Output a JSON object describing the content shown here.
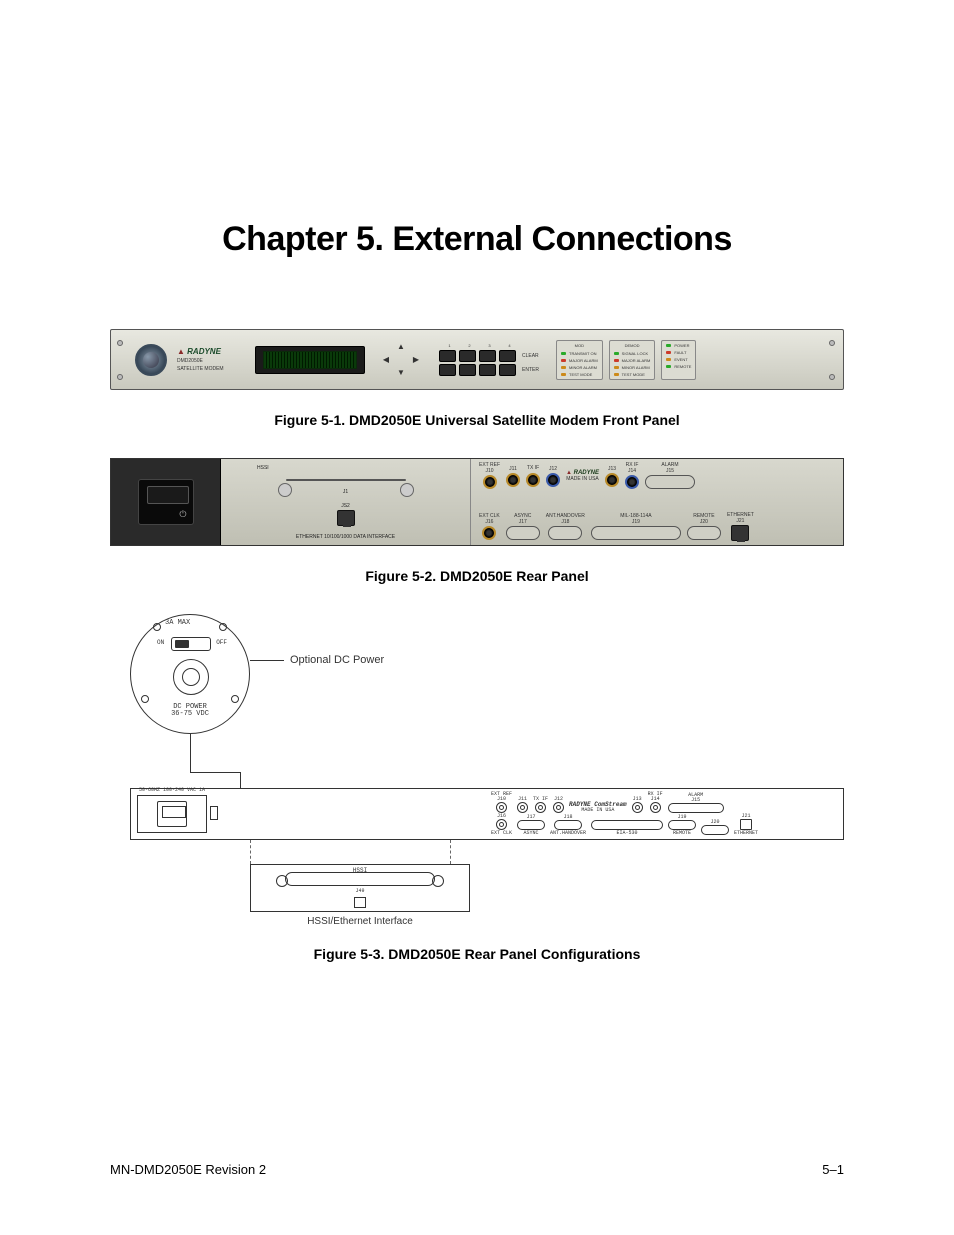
{
  "page": {
    "title": "Chapter 5.  External Connections",
    "footer_left": "MN-DMD2050E   Revision 2",
    "footer_right": "5–1"
  },
  "fig1": {
    "caption": "Figure 5-1. DMD2050E Universal Satellite Modem Front Panel",
    "brand": "RADYNE",
    "model_line1": "DMD2050E",
    "model_line2": "SATELLITE MODEM",
    "keypad_cols": [
      "1",
      "2",
      "3",
      "4"
    ],
    "keypad_side": [
      "CLEAR",
      "ENTER"
    ],
    "led_groups": [
      {
        "title": "MOD",
        "rows": [
          {
            "color": "#2aaa2a",
            "label": "TRANSMIT ON"
          },
          {
            "color": "#cc3a2a",
            "label": "MAJOR ALARM"
          },
          {
            "color": "#cc8a1a",
            "label": "MINOR ALARM"
          },
          {
            "color": "#cc8a1a",
            "label": "TEST MODE"
          }
        ]
      },
      {
        "title": "DEMOD",
        "rows": [
          {
            "color": "#2aaa2a",
            "label": "SIGNAL LOCK"
          },
          {
            "color": "#cc3a2a",
            "label": "MAJOR ALARM"
          },
          {
            "color": "#cc8a1a",
            "label": "MINOR ALARM"
          },
          {
            "color": "#cc8a1a",
            "label": "TEST MODE"
          }
        ]
      },
      {
        "title": "",
        "rows": [
          {
            "color": "#2aaa2a",
            "label": "POWER"
          },
          {
            "color": "#cc3a2a",
            "label": "FAULT"
          },
          {
            "color": "#cc8a1a",
            "label": "EVENT"
          },
          {
            "color": "#2aaa2a",
            "label": "REMOTE"
          }
        ]
      }
    ]
  },
  "fig2": {
    "caption": "Figure 5-2. DMD2050E Rear Panel",
    "hssi_label": "HSSI",
    "j1": "J1",
    "j52": "JS2",
    "eth_label": "ETHERNET 10/100/1000 DATA INTERFACE",
    "brand": "RADYNE",
    "made": "MADE IN USA",
    "top": [
      {
        "t": "EXT REF",
        "j": "J10",
        "type": "bnc"
      },
      {
        "t": "",
        "j": "J11",
        "type": "bnc"
      },
      {
        "t": "TX IF",
        "j": "",
        "type": "bnc"
      },
      {
        "t": "",
        "j": "J12",
        "type": "bnc-blue"
      },
      {
        "t": "",
        "j": "J13",
        "type": "bnc"
      },
      {
        "t": "RX IF",
        "j": "J14",
        "type": "bnc-blue"
      },
      {
        "t": "ALARM",
        "j": "J15",
        "type": "dsub-m"
      }
    ],
    "bottom": [
      {
        "t": "EXT CLK",
        "j": "J16",
        "type": "bnc"
      },
      {
        "t": "ASYNC",
        "j": "J17",
        "type": "dsub-s"
      },
      {
        "t": "ANT.HANDOVER",
        "j": "J18",
        "type": "dsub-s"
      },
      {
        "t": "MIL-188-114A",
        "j": "J19",
        "type": "dsub-l"
      },
      {
        "t": "REMOTE",
        "j": "J20",
        "type": "dsub-s"
      },
      {
        "t": "ETHERNET",
        "j": "J21",
        "type": "rj45"
      }
    ]
  },
  "fig3": {
    "caption": "Figure 5-3. DMD2050E Rear Panel Configurations",
    "dc_label": "Optional DC Power",
    "dc_3a": "3A MAX",
    "dc_on": "ON",
    "dc_off": "OFF",
    "dc_power": "DC POWER\n36-75 VDC",
    "pwr_lbl": "50-60HZ 100-240 VAC 1A",
    "brand": "RADYNE ComStream",
    "made": "MADE IN USA",
    "top": [
      {
        "t": "EXT REF",
        "j": "J10"
      },
      {
        "t": "",
        "j": "J11"
      },
      {
        "t": "TX IF",
        "j": ""
      },
      {
        "t": "",
        "j": "J12"
      },
      {
        "t": "",
        "j": "J13"
      },
      {
        "t": "RX IF",
        "j": "J14"
      },
      {
        "t": "ALARM",
        "j": "J15"
      }
    ],
    "bottom": [
      {
        "t": "EXT CLK",
        "j": "J16"
      },
      {
        "t": "ASYNC",
        "j": "J17"
      },
      {
        "t": "ANT.HANDOVER",
        "j": "J18"
      },
      {
        "t": "EIA-530",
        "j": ""
      },
      {
        "t": "REMOTE",
        "j": "J19"
      },
      {
        "t": "",
        "j": "J20"
      },
      {
        "t": "ETHERNET",
        "j": "J21"
      }
    ],
    "hssi_title": "HSSI",
    "hssi_j": "J49",
    "hssi_caption": "HSSI/Ethernet Interface"
  }
}
